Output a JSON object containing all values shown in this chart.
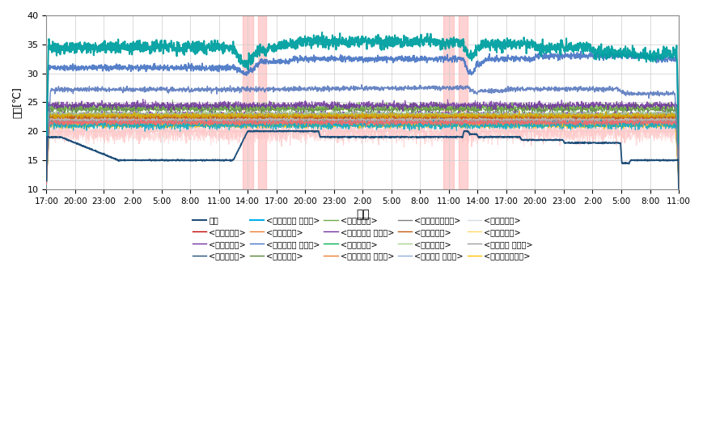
{
  "xlabel": "시간",
  "ylabel": "온도[℃]",
  "ylim": [
    10,
    40
  ],
  "yticks": [
    10,
    15,
    20,
    25,
    30,
    35,
    40
  ],
  "xtick_labels": [
    "17:00",
    "20:00",
    "23:00",
    "2:00",
    "5:00",
    "8:00",
    "11:00",
    "14:00",
    "17:00",
    "20:00",
    "23:00",
    "2:00",
    "5:00",
    "8:00",
    "11:00",
    "14:00",
    "17:00",
    "20:00",
    "23:00",
    "2:00",
    "5:00",
    "8:00",
    "11:00"
  ],
  "n_ticks": 23,
  "bg_color": "#ffffff",
  "legend_rows": [
    [
      {
        "label": "외기",
        "color": "#1f4e79",
        "lw": 1.5
      },
      {
        "label": "<설비구우벽>",
        "color": "#c00000",
        "lw": 1.0
      },
      {
        "label": "<설비구천장>",
        "color": "#7030a0",
        "lw": 1.0
      },
      {
        "label": "<설비구바닥>",
        "color": "#1f4e79",
        "lw": 1.0
      },
      {
        "label": "<설비구난방 공급관>",
        "color": "#00b0f0",
        "lw": 1.5
      }
    ],
    [
      {
        "label": "<설비구좌벽>",
        "color": "#ed7d31",
        "lw": 1.0
      },
      {
        "label": "<설비구난방 환수관>",
        "color": "#4472c4",
        "lw": 1.0
      },
      {
        "label": "<전력구천장>",
        "color": "#548235",
        "lw": 1.0
      },
      {
        "label": "<전력구우벽>",
        "color": "#70ad47",
        "lw": 1.0
      },
      {
        "label": "<전력구우측 케이블>",
        "color": "#7030a0",
        "lw": 1.0
      }
    ],
    [
      {
        "label": "<전력구좌벽>",
        "color": "#00b050",
        "lw": 1.0
      },
      {
        "label": "<전력구좌측 케이블>",
        "color": "#ed7d31",
        "lw": 1.0
      },
      {
        "label": "<전력구배기내벽>",
        "color": "#808080",
        "lw": 1.0
      },
      {
        "label": "<전력구바닥>",
        "color": "#c55a11",
        "lw": 1.0
      },
      {
        "label": "<전력구우벽>",
        "color": "#a9d18e",
        "lw": 1.0
      }
    ],
    [
      {
        "label": "<전력구우 케이블>",
        "color": "#8faadc",
        "lw": 1.0
      },
      {
        "label": "<전력구천장>",
        "color": "#d6dce4",
        "lw": 1.0
      },
      {
        "label": "<전력구좌벽>",
        "color": "#ffd966",
        "lw": 1.0
      },
      {
        "label": "<전력구좌 케이블>",
        "color": "#9e9e9e",
        "lw": 1.0
      },
      {
        "label": "<전력구급기내벽>",
        "color": "#ffc000",
        "lw": 1.0
      }
    ]
  ]
}
